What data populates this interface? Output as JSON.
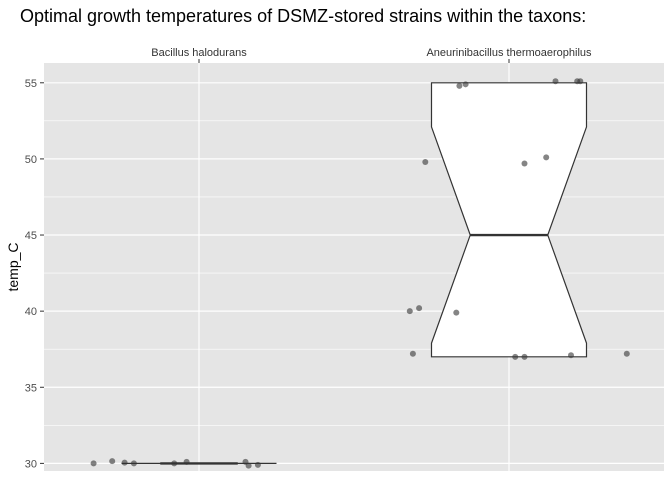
{
  "chart_data": {
    "type": "box",
    "title": "Optimal growth temperatures of DSMZ-stored strains within the taxons:",
    "ylabel": "temp_C",
    "xlabel": "",
    "ylim": [
      29.5,
      56.3
    ],
    "yticks": [
      30,
      35,
      40,
      45,
      50,
      55
    ],
    "categories": [
      "Bacillus halodurans",
      "Aneurinibacillus thermoaerophilus"
    ],
    "x_axis_position": "top",
    "grid": true,
    "notched": true,
    "boxes": [
      {
        "category": "Bacillus halodurans",
        "min": 30,
        "q1": 30,
        "median": 30,
        "q3": 30,
        "max": 30,
        "notch_low": 30,
        "notch_high": 30
      },
      {
        "category": "Aneurinibacillus thermoaerophilus",
        "min": 37,
        "q1": 37,
        "median": 45,
        "q3": 55,
        "max": 55,
        "notch_low": 37.9,
        "notch_high": 52.1
      }
    ],
    "points": [
      {
        "category": 0,
        "jitter": -0.34,
        "y": 30.0
      },
      {
        "category": 0,
        "jitter": -0.28,
        "y": 30.15
      },
      {
        "category": 0,
        "jitter": -0.24,
        "y": 30.05
      },
      {
        "category": 0,
        "jitter": -0.21,
        "y": 30.0
      },
      {
        "category": 0,
        "jitter": -0.08,
        "y": 30.0
      },
      {
        "category": 0,
        "jitter": -0.04,
        "y": 30.1
      },
      {
        "category": 0,
        "jitter": 0.15,
        "y": 30.1
      },
      {
        "category": 0,
        "jitter": 0.16,
        "y": 29.85
      },
      {
        "category": 0,
        "jitter": 0.19,
        "y": 29.9
      },
      {
        "category": 1,
        "jitter": -0.32,
        "y": 40.0
      },
      {
        "category": 1,
        "jitter": -0.29,
        "y": 40.2
      },
      {
        "category": 1,
        "jitter": -0.31,
        "y": 37.2
      },
      {
        "category": 1,
        "jitter": -0.17,
        "y": 39.9
      },
      {
        "category": 1,
        "jitter": -0.27,
        "y": 49.8
      },
      {
        "category": 1,
        "jitter": -0.16,
        "y": 54.8
      },
      {
        "category": 1,
        "jitter": -0.14,
        "y": 54.9
      },
      {
        "category": 1,
        "jitter": 0.05,
        "y": 49.7
      },
      {
        "category": 1,
        "jitter": 0.12,
        "y": 50.1
      },
      {
        "category": 1,
        "jitter": 0.15,
        "y": 55.1
      },
      {
        "category": 1,
        "jitter": 0.22,
        "y": 55.1
      },
      {
        "category": 1,
        "jitter": 0.23,
        "y": 55.1
      },
      {
        "category": 1,
        "jitter": 0.02,
        "y": 37.0
      },
      {
        "category": 1,
        "jitter": 0.05,
        "y": 37.0
      },
      {
        "category": 1,
        "jitter": 0.2,
        "y": 37.1
      },
      {
        "category": 1,
        "jitter": 0.38,
        "y": 37.2
      }
    ],
    "colors": {
      "panel": "#e5e5e5",
      "grid": "#ffffff",
      "box_fill": "#ffffff",
      "box_stroke": "#333333",
      "point": "#333333"
    }
  }
}
